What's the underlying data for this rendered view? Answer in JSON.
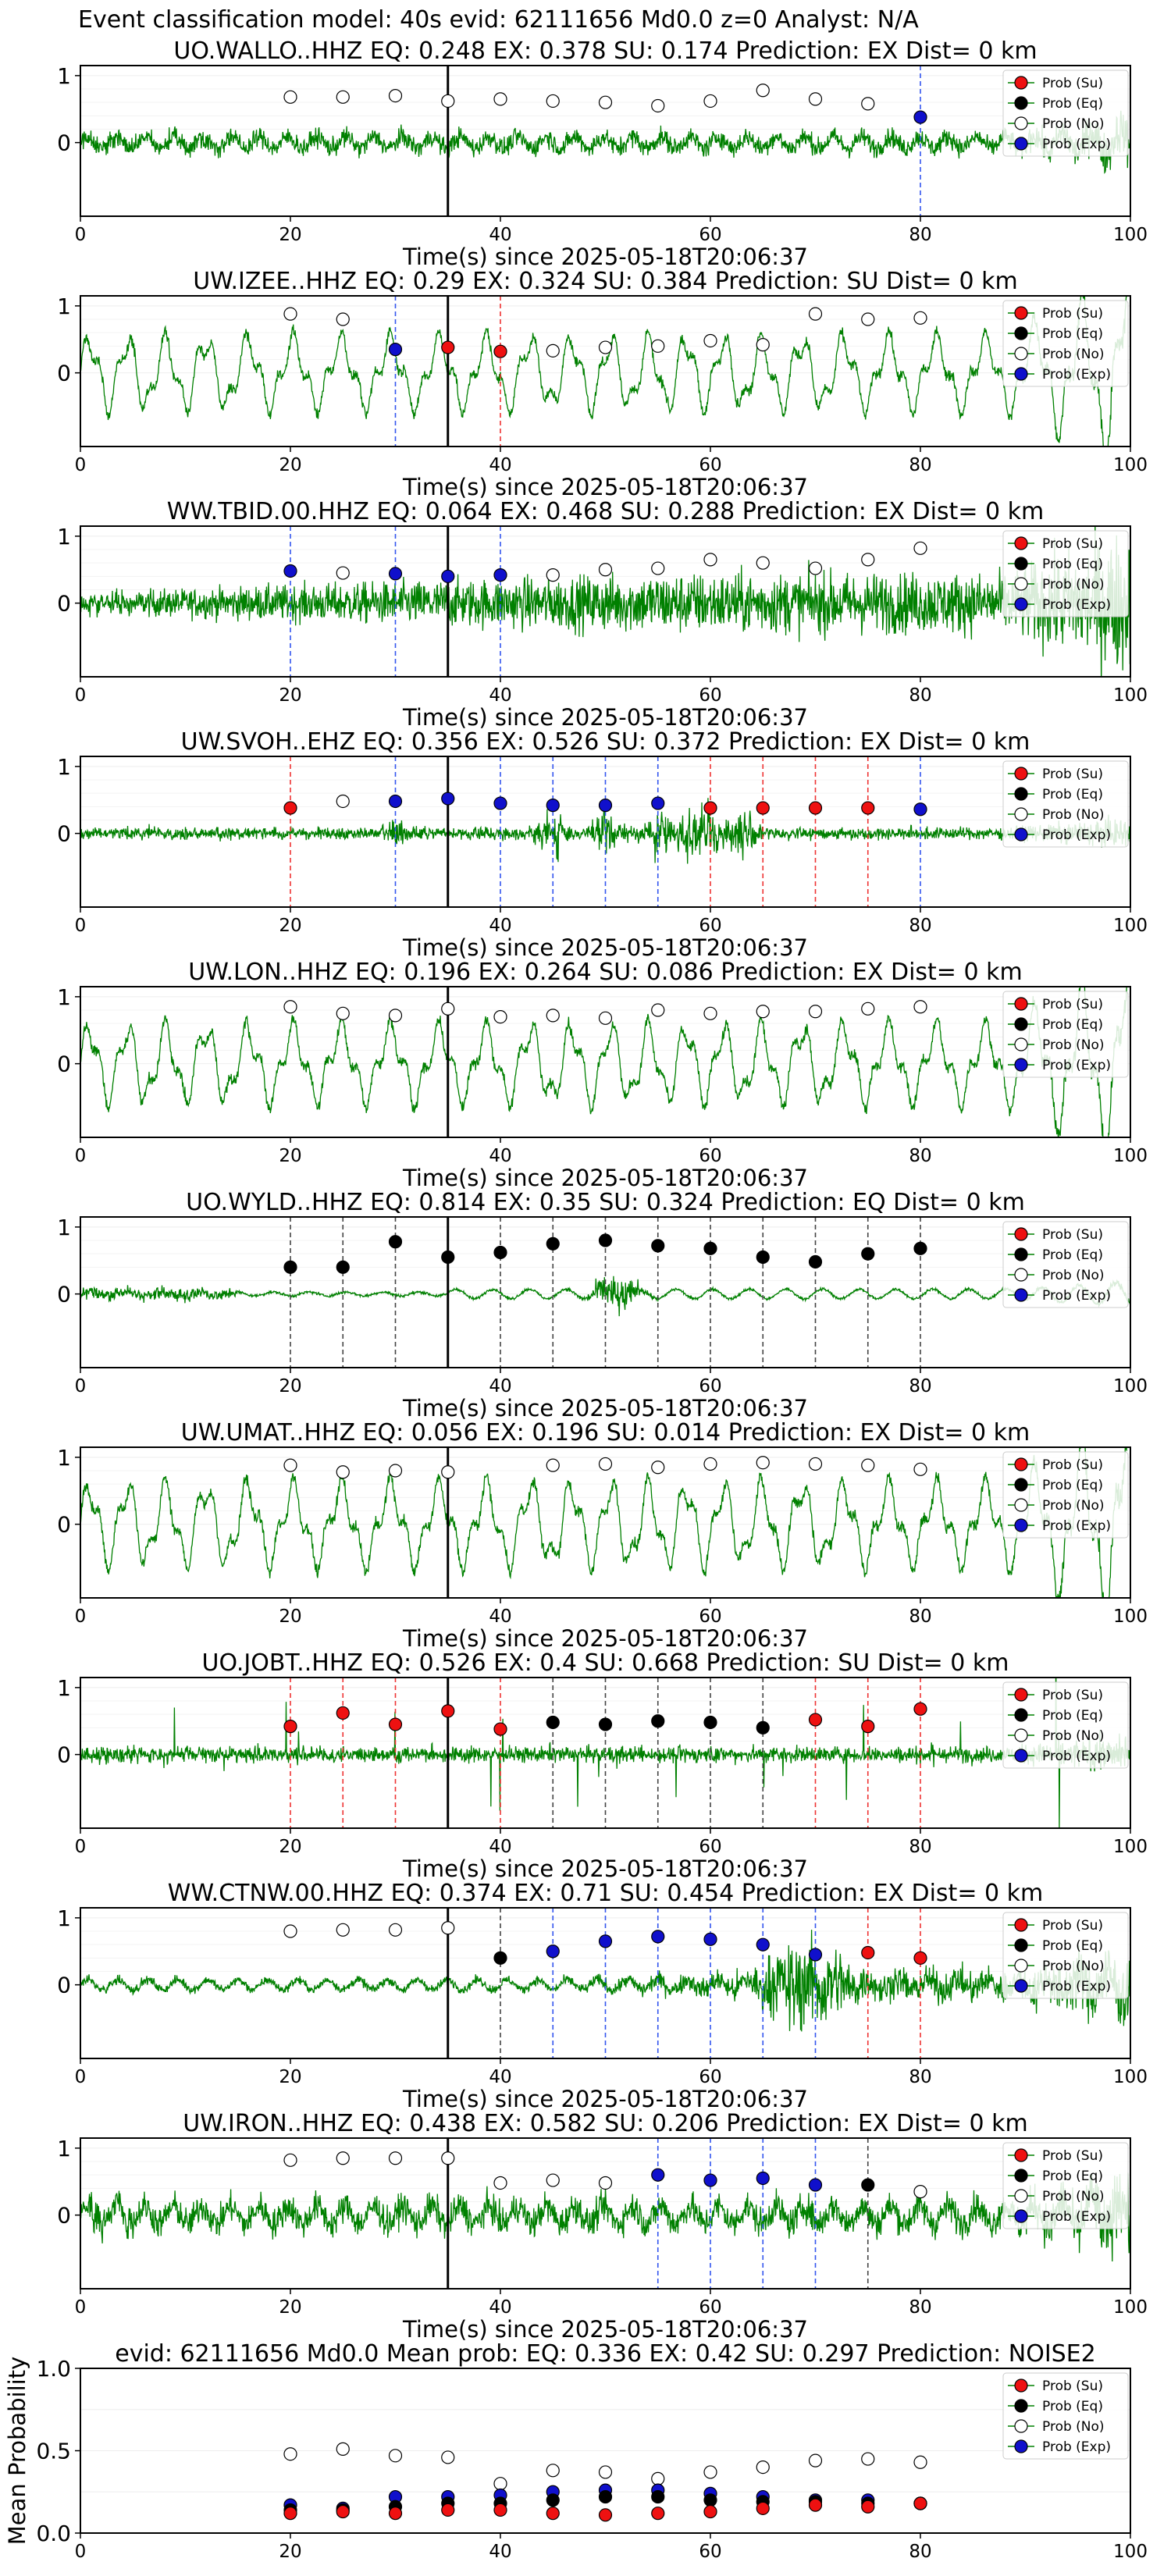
{
  "figure_title": "Event classification model: 40s evid: 62111656 Md0.0 z=0 Analyst: N/A",
  "colors": {
    "waveform": "#008000",
    "su": "#ee1111",
    "eq": "#000000",
    "no": "#ffffff",
    "exp": "#1010cc",
    "line_su": "#ee3333",
    "line_eq": "#444444",
    "line_exp": "#3355ee",
    "origin_line": "#000000"
  },
  "legend": [
    "Prob (Su)",
    "Prob (Eq)",
    "Prob (No)",
    "Prob (Exp)"
  ],
  "chart_data": [
    {
      "type": "line",
      "title": "UO.WALLO..HHZ   EQ: 0.248  EX: 0.378  SU: 0.174   Prediction: EX    Dist= 0 km",
      "xlabel": "Time(s) since 2025-05-18T20:06:37",
      "xlim": [
        0,
        100
      ],
      "xticks": [
        0,
        20,
        40,
        60,
        80,
        100
      ],
      "yticks": [
        0,
        1
      ],
      "origin_time": 35,
      "waveform_style": "broadband_noise",
      "waveform_amp": 0.55,
      "points": [
        [
          20,
          "no",
          0.68
        ],
        [
          25,
          "no",
          0.68
        ],
        [
          30,
          "no",
          0.7
        ],
        [
          35,
          "no",
          0.62
        ],
        [
          40,
          "no",
          0.65
        ],
        [
          45,
          "no",
          0.62
        ],
        [
          50,
          "no",
          0.6
        ],
        [
          55,
          "no",
          0.55
        ],
        [
          60,
          "no",
          0.62
        ],
        [
          65,
          "no",
          0.78
        ],
        [
          70,
          "no",
          0.65
        ],
        [
          75,
          "no",
          0.58
        ],
        [
          80,
          "exp",
          0.38
        ]
      ]
    },
    {
      "type": "line",
      "title": "UW.IZEE..HHZ   EQ: 0.29  EX: 0.324  SU: 0.384   Prediction: SU    Dist= 0 km",
      "xlabel": "Time(s) since 2025-05-18T20:06:37",
      "xlim": [
        0,
        100
      ],
      "xticks": [
        0,
        20,
        40,
        60,
        80,
        100
      ],
      "yticks": [
        0,
        1
      ],
      "origin_time": 35,
      "waveform_style": "oscillation",
      "waveform_amp": 0.75,
      "points": [
        [
          20,
          "no",
          0.88
        ],
        [
          25,
          "no",
          0.8
        ],
        [
          30,
          "exp",
          0.35
        ],
        [
          35,
          "su",
          0.38
        ],
        [
          40,
          "su",
          0.32
        ],
        [
          45,
          "no",
          0.33
        ],
        [
          50,
          "no",
          0.38
        ],
        [
          55,
          "no",
          0.4
        ],
        [
          60,
          "no",
          0.48
        ],
        [
          65,
          "no",
          0.42
        ],
        [
          70,
          "no",
          0.88
        ],
        [
          75,
          "no",
          0.8
        ],
        [
          80,
          "no",
          0.82
        ]
      ]
    },
    {
      "type": "line",
      "title": "WW.TBID.00.HHZ   EQ: 0.064  EX: 0.468  SU: 0.288   Prediction: EX    Dist= 0 km",
      "xlabel": "Time(s) since 2025-05-18T20:06:37",
      "xlim": [
        0,
        100
      ],
      "xticks": [
        0,
        20,
        40,
        60,
        80,
        100
      ],
      "yticks": [
        0,
        1
      ],
      "origin_time": 35,
      "waveform_style": "growing_noise",
      "waveform_amp": 0.8,
      "points": [
        [
          20,
          "exp",
          0.48
        ],
        [
          25,
          "no",
          0.45
        ],
        [
          30,
          "exp",
          0.44
        ],
        [
          35,
          "exp",
          0.4
        ],
        [
          40,
          "exp",
          0.42
        ],
        [
          45,
          "no",
          0.42
        ],
        [
          50,
          "no",
          0.5
        ],
        [
          55,
          "no",
          0.52
        ],
        [
          60,
          "no",
          0.65
        ],
        [
          65,
          "no",
          0.6
        ],
        [
          70,
          "no",
          0.52
        ],
        [
          75,
          "no",
          0.65
        ],
        [
          80,
          "no",
          0.82
        ]
      ]
    },
    {
      "type": "line",
      "title": "UW.SVOH..EHZ   EQ: 0.356  EX: 0.526  SU: 0.372   Prediction: EX    Dist= 0 km",
      "xlabel": "Time(s) since 2025-05-18T20:06:37",
      "xlim": [
        0,
        100
      ],
      "xticks": [
        0,
        20,
        40,
        60,
        80,
        100
      ],
      "yticks": [
        0,
        1
      ],
      "origin_time": 35,
      "waveform_style": "bursts",
      "waveform_amp": 0.85,
      "points": [
        [
          20,
          "su",
          0.38
        ],
        [
          25,
          "no",
          0.48
        ],
        [
          30,
          "exp",
          0.48
        ],
        [
          35,
          "exp",
          0.52
        ],
        [
          40,
          "exp",
          0.45
        ],
        [
          45,
          "exp",
          0.42
        ],
        [
          50,
          "exp",
          0.42
        ],
        [
          55,
          "exp",
          0.45
        ],
        [
          60,
          "su",
          0.38
        ],
        [
          65,
          "su",
          0.38
        ],
        [
          70,
          "su",
          0.38
        ],
        [
          75,
          "su",
          0.38
        ],
        [
          80,
          "exp",
          0.36
        ]
      ]
    },
    {
      "type": "line",
      "title": "UW.LON..HHZ   EQ: 0.196  EX: 0.264  SU: 0.086   Prediction: EX    Dist= 0 km",
      "xlabel": "Time(s) since 2025-05-18T20:06:37",
      "xlim": [
        0,
        100
      ],
      "xticks": [
        0,
        20,
        40,
        60,
        80,
        100
      ],
      "yticks": [
        0,
        1
      ],
      "origin_time": 35,
      "waveform_style": "oscillation",
      "waveform_amp": 0.8,
      "points": [
        [
          20,
          "no",
          0.85
        ],
        [
          25,
          "no",
          0.75
        ],
        [
          30,
          "no",
          0.72
        ],
        [
          35,
          "no",
          0.82
        ],
        [
          40,
          "no",
          0.7
        ],
        [
          45,
          "no",
          0.72
        ],
        [
          50,
          "no",
          0.68
        ],
        [
          55,
          "no",
          0.8
        ],
        [
          60,
          "no",
          0.75
        ],
        [
          65,
          "no",
          0.78
        ],
        [
          70,
          "no",
          0.78
        ],
        [
          75,
          "no",
          0.82
        ],
        [
          80,
          "no",
          0.85
        ]
      ]
    },
    {
      "type": "line",
      "title": "UO.WYLD..HHZ   EQ: 0.814  EX: 0.35  SU: 0.324   Prediction: EQ    Dist= 0 km",
      "xlabel": "Time(s) since 2025-05-18T20:06:37",
      "xlim": [
        0,
        100
      ],
      "xticks": [
        0,
        20,
        40,
        60,
        80,
        100
      ],
      "yticks": [
        0,
        1
      ],
      "origin_time": 35,
      "waveform_style": "quiet_event",
      "waveform_amp": 0.6,
      "points": [
        [
          20,
          "eq",
          0.4
        ],
        [
          25,
          "eq",
          0.4
        ],
        [
          30,
          "eq",
          0.78
        ],
        [
          35,
          "eq",
          0.55
        ],
        [
          40,
          "eq",
          0.62
        ],
        [
          45,
          "eq",
          0.75
        ],
        [
          50,
          "eq",
          0.8
        ],
        [
          55,
          "eq",
          0.72
        ],
        [
          60,
          "eq",
          0.68
        ],
        [
          65,
          "eq",
          0.55
        ],
        [
          70,
          "eq",
          0.48
        ],
        [
          75,
          "eq",
          0.6
        ],
        [
          80,
          "eq",
          0.68
        ]
      ]
    },
    {
      "type": "line",
      "title": "UW.UMAT..HHZ   EQ: 0.056  EX: 0.196  SU: 0.014   Prediction: EX    Dist= 0 km",
      "xlabel": "Time(s) since 2025-05-18T20:06:37",
      "xlim": [
        0,
        100
      ],
      "xticks": [
        0,
        20,
        40,
        60,
        80,
        100
      ],
      "yticks": [
        0,
        1
      ],
      "origin_time": 35,
      "waveform_style": "oscillation",
      "waveform_amp": 0.85,
      "points": [
        [
          20,
          "no",
          0.88
        ],
        [
          25,
          "no",
          0.78
        ],
        [
          30,
          "no",
          0.8
        ],
        [
          35,
          "no",
          0.78
        ],
        [
          45,
          "no",
          0.88
        ],
        [
          50,
          "no",
          0.9
        ],
        [
          55,
          "no",
          0.85
        ],
        [
          60,
          "no",
          0.9
        ],
        [
          65,
          "no",
          0.92
        ],
        [
          70,
          "no",
          0.9
        ],
        [
          75,
          "no",
          0.88
        ],
        [
          80,
          "no",
          0.82
        ]
      ]
    },
    {
      "type": "line",
      "title": "UO.JOBT..HHZ   EQ: 0.526  EX: 0.4  SU: 0.668   Prediction: SU    Dist= 0 km",
      "xlabel": "Time(s) since 2025-05-18T20:06:37",
      "xlim": [
        0,
        100
      ],
      "xticks": [
        0,
        20,
        40,
        60,
        80,
        100
      ],
      "yticks": [
        0,
        1
      ],
      "origin_time": 35,
      "waveform_style": "spiky",
      "waveform_amp": 0.8,
      "points": [
        [
          20,
          "su",
          0.42
        ],
        [
          25,
          "su",
          0.62
        ],
        [
          30,
          "su",
          0.45
        ],
        [
          35,
          "su",
          0.65
        ],
        [
          40,
          "su",
          0.38
        ],
        [
          45,
          "eq",
          0.48
        ],
        [
          50,
          "eq",
          0.45
        ],
        [
          55,
          "eq",
          0.5
        ],
        [
          60,
          "eq",
          0.48
        ],
        [
          65,
          "eq",
          0.4
        ],
        [
          70,
          "su",
          0.52
        ],
        [
          75,
          "su",
          0.42
        ],
        [
          80,
          "su",
          0.68
        ]
      ]
    },
    {
      "type": "line",
      "title": "WW.CTNW.00.HHZ   EQ: 0.374  EX: 0.71  SU: 0.454   Prediction: EX    Dist= 0 km",
      "xlabel": "Time(s) since 2025-05-18T20:06:37",
      "xlim": [
        0,
        100
      ],
      "xticks": [
        0,
        20,
        40,
        60,
        80,
        100
      ],
      "yticks": [
        0,
        1
      ],
      "origin_time": 35,
      "waveform_style": "late_event",
      "waveform_amp": 0.9,
      "points": [
        [
          20,
          "no",
          0.8
        ],
        [
          25,
          "no",
          0.82
        ],
        [
          30,
          "no",
          0.82
        ],
        [
          35,
          "no",
          0.85
        ],
        [
          40,
          "eq",
          0.4
        ],
        [
          45,
          "exp",
          0.5
        ],
        [
          50,
          "exp",
          0.65
        ],
        [
          55,
          "exp",
          0.72
        ],
        [
          60,
          "exp",
          0.68
        ],
        [
          65,
          "exp",
          0.6
        ],
        [
          70,
          "exp",
          0.45
        ],
        [
          75,
          "su",
          0.48
        ],
        [
          80,
          "su",
          0.4
        ]
      ]
    },
    {
      "type": "line",
      "title": "UW.IRON..HHZ   EQ: 0.438  EX: 0.582  SU: 0.206   Prediction: EX    Dist= 0 km",
      "xlabel": "Time(s) since 2025-05-18T20:06:37",
      "xlim": [
        0,
        100
      ],
      "xticks": [
        0,
        20,
        40,
        60,
        80,
        100
      ],
      "yticks": [
        0,
        1
      ],
      "origin_time": 35,
      "waveform_style": "broadband_noise",
      "waveform_amp": 0.85,
      "points": [
        [
          20,
          "no",
          0.82
        ],
        [
          25,
          "no",
          0.85
        ],
        [
          30,
          "no",
          0.85
        ],
        [
          35,
          "no",
          0.85
        ],
        [
          40,
          "no",
          0.48
        ],
        [
          45,
          "no",
          0.52
        ],
        [
          50,
          "no",
          0.48
        ],
        [
          55,
          "exp",
          0.6
        ],
        [
          60,
          "exp",
          0.52
        ],
        [
          65,
          "exp",
          0.55
        ],
        [
          70,
          "exp",
          0.45
        ],
        [
          75,
          "eq",
          0.45
        ],
        [
          80,
          "no",
          0.35
        ]
      ]
    },
    {
      "type": "scatter",
      "title": "evid: 62111656  Md0.0   Mean prob:   EQ: 0.336  EX: 0.42  SU: 0.297   Prediction: NOISE2",
      "ylabel": "Mean Probability",
      "xlim": [
        0,
        100
      ],
      "xticks": [
        0,
        20,
        40,
        60,
        80,
        100
      ],
      "ylim": [
        0,
        1
      ],
      "yticks": [
        0.0,
        0.5,
        1.0
      ],
      "series": [
        {
          "name": "Prob (No)",
          "key": "no",
          "x": [
            20,
            25,
            30,
            35,
            40,
            45,
            50,
            55,
            60,
            65,
            70,
            75,
            80
          ],
          "values": [
            0.48,
            0.51,
            0.47,
            0.46,
            0.3,
            0.38,
            0.37,
            0.33,
            0.37,
            0.4,
            0.44,
            0.45,
            0.43
          ]
        },
        {
          "name": "Prob (Exp)",
          "key": "exp",
          "x": [
            20,
            25,
            30,
            35,
            40,
            45,
            50,
            55,
            60,
            65,
            70,
            75,
            80
          ],
          "values": [
            0.17,
            0.15,
            0.22,
            0.22,
            0.23,
            0.25,
            0.26,
            0.26,
            0.24,
            0.22,
            0.2,
            0.2,
            0.18
          ]
        },
        {
          "name": "Prob (Eq)",
          "key": "eq",
          "x": [
            20,
            25,
            30,
            35,
            40,
            45,
            50,
            55,
            60,
            65,
            70,
            75,
            80
          ],
          "values": [
            0.14,
            0.14,
            0.16,
            0.18,
            0.18,
            0.2,
            0.22,
            0.22,
            0.2,
            0.19,
            0.19,
            0.18,
            0.18
          ]
        },
        {
          "name": "Prob (Su)",
          "key": "su",
          "x": [
            20,
            25,
            30,
            35,
            40,
            45,
            50,
            55,
            60,
            65,
            70,
            75,
            80
          ],
          "values": [
            0.12,
            0.13,
            0.12,
            0.14,
            0.14,
            0.12,
            0.11,
            0.12,
            0.13,
            0.15,
            0.17,
            0.16,
            0.18
          ]
        }
      ]
    }
  ]
}
